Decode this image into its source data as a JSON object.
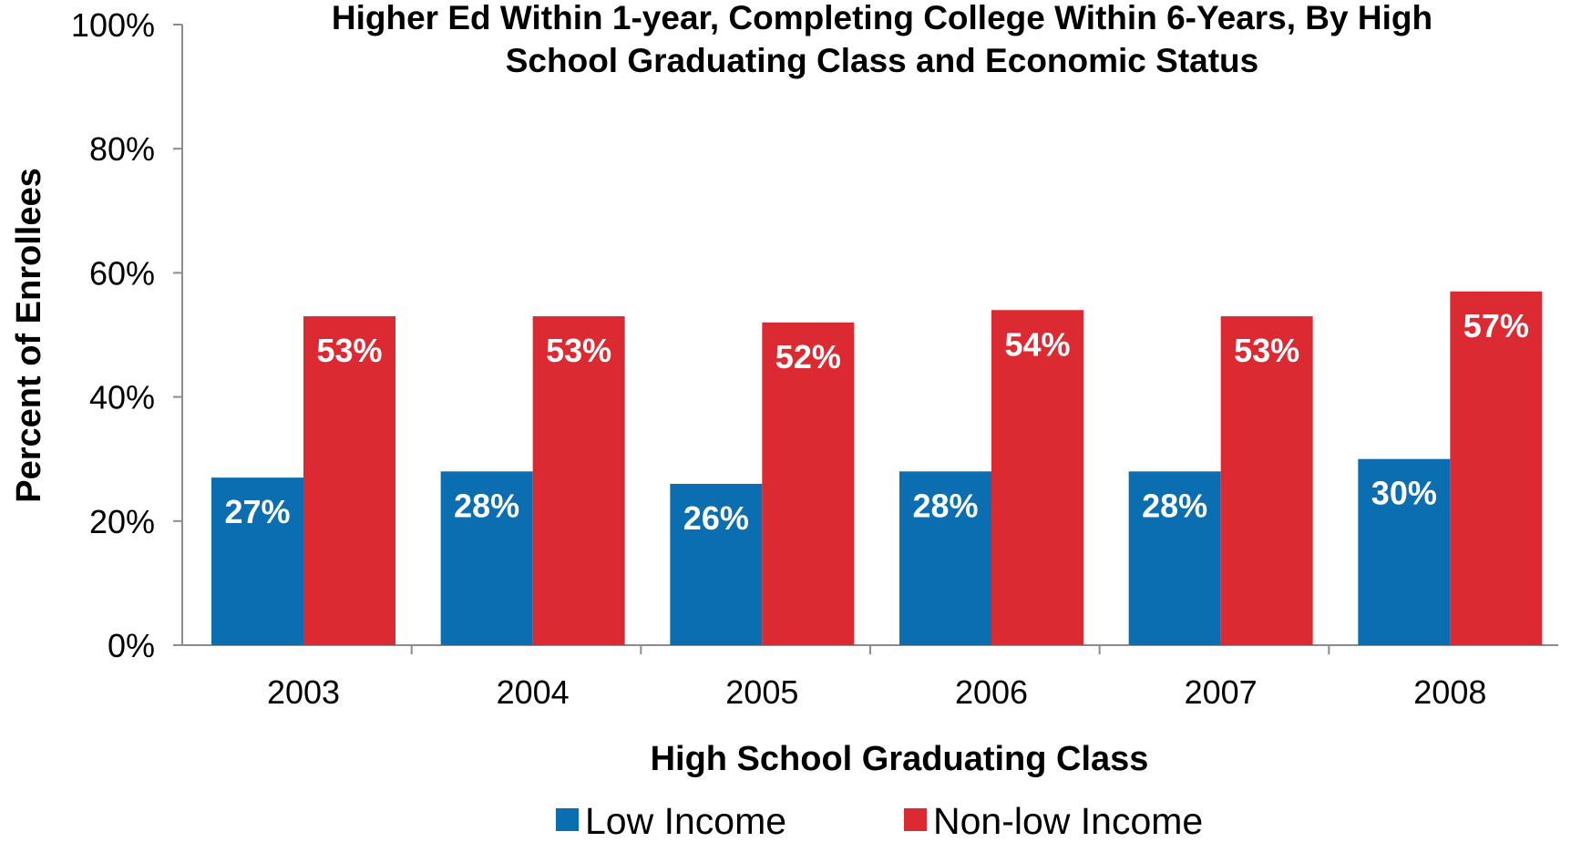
{
  "chart_data": {
    "type": "bar",
    "title": "Higher Ed Within 1-year, Completing College Within 6-Years, By High School Graduating Class and Economic Status",
    "title_lines": [
      "Higher Ed Within 1-year, Completing College Within 6-Years, By High",
      "School Graduating Class and Economic Status"
    ],
    "xlabel": "High School Graduating Class",
    "ylabel": "Percent of Enrollees",
    "categories": [
      "2003",
      "2004",
      "2005",
      "2006",
      "2007",
      "2008"
    ],
    "ylim": [
      0,
      100
    ],
    "yticks": [
      0,
      20,
      40,
      60,
      80,
      100
    ],
    "ytick_labels": [
      "0%",
      "20%",
      "40%",
      "60%",
      "80%",
      "100%"
    ],
    "grid": false,
    "legend_position": "bottom",
    "series": [
      {
        "name": "Low Income",
        "color": "#0a6eb0",
        "values": [
          27,
          28,
          26,
          28,
          28,
          30
        ],
        "labels": [
          "27%",
          "28%",
          "26%",
          "28%",
          "28%",
          "30%"
        ]
      },
      {
        "name": "Non-low Income",
        "color": "#dc2a33",
        "values": [
          53,
          53,
          52,
          54,
          53,
          57
        ],
        "labels": [
          "53%",
          "53%",
          "52%",
          "54%",
          "53%",
          "57%"
        ]
      }
    ]
  }
}
